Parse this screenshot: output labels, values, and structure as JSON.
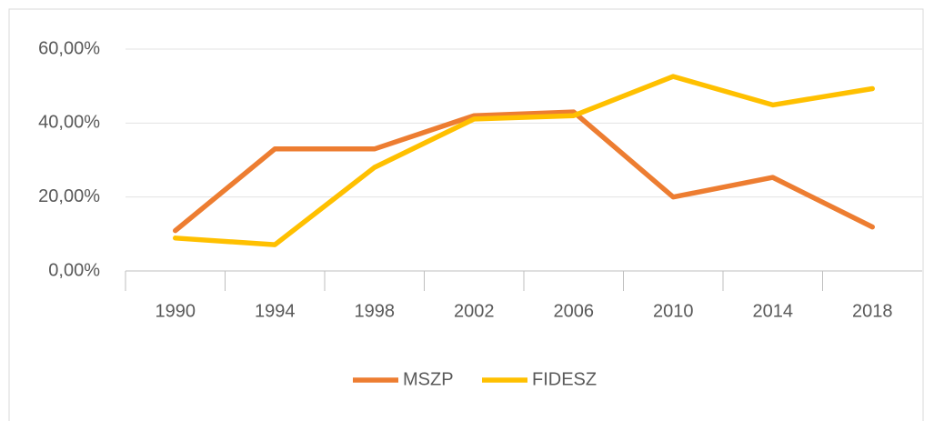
{
  "chart_data": {
    "type": "line",
    "categories": [
      "1990",
      "1994",
      "1998",
      "2002",
      "2006",
      "2010",
      "2014",
      "2018"
    ],
    "series": [
      {
        "name": "MSZP",
        "color": "#ed7d31",
        "values": [
          10.9,
          33,
          33,
          42,
          43,
          20,
          25.3,
          11.9
        ]
      },
      {
        "name": "FIDESZ",
        "color": "#ffc000",
        "values": [
          8.9,
          7.1,
          28,
          41.1,
          42,
          52.6,
          44.9,
          49.3
        ]
      }
    ],
    "ylim": [
      0,
      60
    ],
    "yticks": [
      {
        "value": 0,
        "label": "0,00%"
      },
      {
        "value": 20,
        "label": "20,00%"
      },
      {
        "value": 40,
        "label": "40,00%"
      },
      {
        "value": 60,
        "label": "60,00%"
      }
    ],
    "grid": true,
    "legend": "bottom"
  }
}
